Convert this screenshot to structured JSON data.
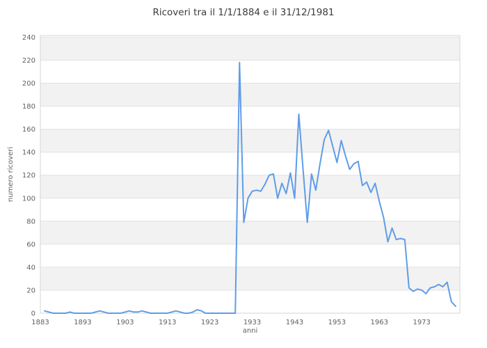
{
  "chart_data": {
    "type": "line",
    "title": "Ricoveri tra il 1/1/1884 e il 31/12/1981",
    "xlabel": "anni",
    "ylabel": "numero ricoveri",
    "xlim": [
      1883,
      1982
    ],
    "ylim": [
      0,
      240
    ],
    "x_ticks": [
      1883,
      1893,
      1903,
      1913,
      1923,
      1933,
      1943,
      1953,
      1963,
      1973
    ],
    "y_ticks": [
      0,
      20,
      40,
      60,
      80,
      100,
      120,
      140,
      160,
      180,
      200,
      220,
      240
    ],
    "grid": true,
    "legend": null,
    "colors": {
      "line": "#5f9ce8",
      "band": "#f2f2f2",
      "gridline": "#e2e2e2",
      "plot_border": "#d6d6d6",
      "tick_text": "#606060",
      "title_text": "#3b3b3b",
      "background": "#ffffff"
    },
    "series": [
      {
        "name": "numero ricoveri",
        "x": [
          1884,
          1885,
          1886,
          1887,
          1888,
          1889,
          1890,
          1891,
          1892,
          1893,
          1894,
          1895,
          1896,
          1897,
          1898,
          1899,
          1900,
          1901,
          1902,
          1903,
          1904,
          1905,
          1906,
          1907,
          1908,
          1909,
          1910,
          1911,
          1912,
          1913,
          1914,
          1915,
          1916,
          1917,
          1918,
          1919,
          1920,
          1921,
          1922,
          1923,
          1924,
          1925,
          1926,
          1927,
          1928,
          1929,
          1930,
          1931,
          1932,
          1933,
          1934,
          1935,
          1936,
          1937,
          1938,
          1939,
          1940,
          1941,
          1942,
          1943,
          1944,
          1945,
          1946,
          1947,
          1948,
          1949,
          1950,
          1951,
          1952,
          1953,
          1954,
          1955,
          1956,
          1957,
          1958,
          1959,
          1960,
          1961,
          1962,
          1963,
          1964,
          1965,
          1966,
          1967,
          1968,
          1969,
          1970,
          1971,
          1972,
          1973,
          1974,
          1975,
          1976,
          1977,
          1978,
          1979,
          1980,
          1981
        ],
        "values": [
          2,
          1,
          0,
          0,
          0,
          0,
          1,
          0,
          0,
          0,
          0,
          0,
          1,
          2,
          1,
          0,
          0,
          0,
          0,
          1,
          2,
          1,
          1,
          2,
          1,
          0,
          0,
          0,
          0,
          0,
          1,
          2,
          1,
          0,
          0,
          1,
          3,
          2,
          0,
          0,
          0,
          0,
          0,
          0,
          0,
          0,
          218,
          79,
          100,
          106,
          107,
          106,
          112,
          120,
          121,
          100,
          113,
          104,
          122,
          100,
          173,
          125,
          79,
          121,
          107,
          130,
          151,
          159,
          145,
          131,
          150,
          137,
          125,
          130,
          132,
          111,
          114,
          105,
          113,
          97,
          83,
          62,
          74,
          64,
          65,
          64,
          22,
          19,
          21,
          20,
          17,
          22,
          23,
          25,
          23,
          27,
          10,
          6
        ]
      }
    ]
  }
}
